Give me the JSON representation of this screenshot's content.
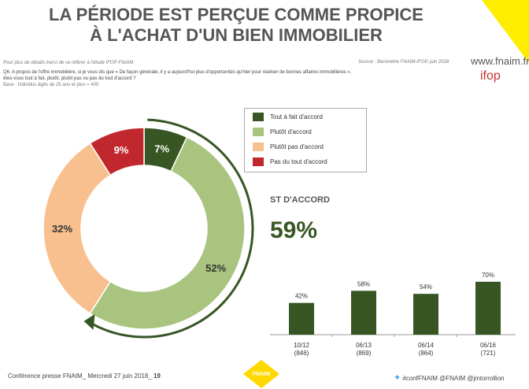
{
  "title_line1": "LA PÉRIODE EST PERÇUE COMME PROPICE",
  "title_line2": "À L'ACHAT D'UN BIEN IMMOBILIER",
  "note": "Pour plus de détails merci de se référer à l'étude IFOP-FNAIM",
  "source": "Source : Baromètre FNAIM-IFOP, juin 2018",
  "site": "www.fnaim.fr",
  "ifop_logo": "ifop",
  "question": "Q6. A propos de l'offre immobilière, si je vous dis que « De façon générale, il y a aujourd'hui plus d'opportunités qu'hier pour réaliser de bonnes affaires immobilières »,",
  "question2": "êtes-vous tout à fait, plutôt, plutôt pas ou pas du tout d'accord ?",
  "base": "Base : Individus âgés de 25 ans et plus = 400",
  "st_label": "ST D'ACCORD",
  "st_value": "59%",
  "footer": "Conférence presse FNAIM_ Mercredi 27 juin 2018_ ",
  "page": "19",
  "fnaim_logo": "FNAIM",
  "social": "#confFNAIM @FNAIM @jmtorrollion",
  "colors": {
    "accent_yellow": "#ffed00",
    "dark_green": "#375623"
  },
  "chart_data": [
    {
      "type": "pie",
      "donut": true,
      "categories": [
        "Tout à fait d'accord",
        "Plutôt d'accord",
        "Plutôt pas d'accord",
        "Pas du tout d'accord"
      ],
      "values": [
        7,
        52,
        32,
        9
      ],
      "labels": [
        "7%",
        "52%",
        "32%",
        "9%"
      ],
      "colors": [
        "#375623",
        "#a9c47f",
        "#f9c08f",
        "#c0282d"
      ],
      "legend": "top-right"
    },
    {
      "type": "bar",
      "categories": [
        "10/12",
        "06/13",
        "06/14",
        "06/16"
      ],
      "sublabels": [
        "(846)",
        "(869)",
        "(864)",
        "(721)"
      ],
      "values": [
        42,
        58,
        54,
        70
      ],
      "labels": [
        "42%",
        "58%",
        "54%",
        "70%"
      ],
      "color": "#375623",
      "ylim": [
        0,
        75
      ]
    }
  ]
}
